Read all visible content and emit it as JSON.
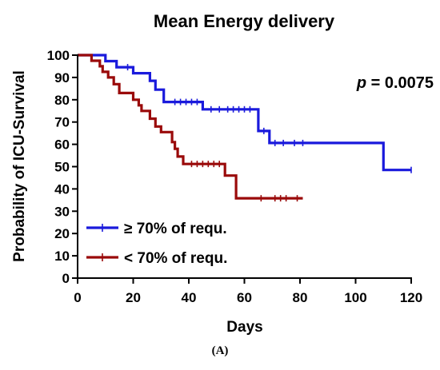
{
  "chart_data": {
    "type": "line",
    "subtype": "kaplan-meier",
    "title": "Mean Energy delivery",
    "xlabel": "Days",
    "ylabel": "Probability of ICU-Survival",
    "xlim": [
      0,
      120
    ],
    "ylim": [
      0,
      100
    ],
    "x_ticks": [
      "0",
      "20",
      "40",
      "60",
      "80",
      "100",
      "120"
    ],
    "y_ticks": [
      "0",
      "10",
      "20",
      "30",
      "40",
      "50",
      "60",
      "70",
      "80",
      "90",
      "100"
    ],
    "annotation": {
      "italic": "p",
      "text": " = 0.0075"
    },
    "panel_label": "(A)",
    "legend_position": "bottom-left",
    "series": [
      {
        "name": "≥ 70% of requ.",
        "color": "#1a1adc",
        "steps": [
          [
            0,
            100
          ],
          [
            10,
            100
          ],
          [
            10,
            97.3
          ],
          [
            14,
            97.3
          ],
          [
            14,
            94.6
          ],
          [
            20,
            94.6
          ],
          [
            20,
            91.9
          ],
          [
            26,
            91.9
          ],
          [
            26,
            88.5
          ],
          [
            28,
            88.5
          ],
          [
            28,
            84.5
          ],
          [
            31,
            84.5
          ],
          [
            31,
            79
          ],
          [
            45,
            79
          ],
          [
            45,
            75.7
          ],
          [
            65,
            75.7
          ],
          [
            65,
            66
          ],
          [
            69,
            66
          ],
          [
            69,
            60.6
          ],
          [
            110,
            60.6
          ],
          [
            110,
            48.5
          ],
          [
            120,
            48.5
          ]
        ],
        "censors": [
          [
            18,
            94.6
          ],
          [
            35,
            79
          ],
          [
            37,
            79
          ],
          [
            39,
            79
          ],
          [
            41,
            79
          ],
          [
            43,
            79
          ],
          [
            48,
            75.7
          ],
          [
            51,
            75.7
          ],
          [
            54,
            75.7
          ],
          [
            56,
            75.7
          ],
          [
            58,
            75.7
          ],
          [
            60,
            75.7
          ],
          [
            62,
            75.7
          ],
          [
            67,
            66
          ],
          [
            71,
            60.6
          ],
          [
            74,
            60.6
          ],
          [
            78,
            60.6
          ],
          [
            81,
            60.6
          ],
          [
            120,
            48.5
          ]
        ]
      },
      {
        "name": "< 70% of requ.",
        "color": "#9a0a0a",
        "steps": [
          [
            0,
            100
          ],
          [
            5,
            100
          ],
          [
            5,
            97.5
          ],
          [
            8,
            97.5
          ],
          [
            8,
            95
          ],
          [
            9,
            95
          ],
          [
            9,
            92.5
          ],
          [
            11,
            92.5
          ],
          [
            11,
            90
          ],
          [
            13,
            90
          ],
          [
            13,
            87
          ],
          [
            15,
            87
          ],
          [
            15,
            83
          ],
          [
            20,
            83
          ],
          [
            20,
            80
          ],
          [
            22,
            80
          ],
          [
            22,
            77.5
          ],
          [
            23,
            77.5
          ],
          [
            23,
            75
          ],
          [
            26,
            75
          ],
          [
            26,
            71.5
          ],
          [
            28,
            71.5
          ],
          [
            28,
            68
          ],
          [
            30,
            68
          ],
          [
            30,
            65.5
          ],
          [
            34,
            65.5
          ],
          [
            34,
            61
          ],
          [
            35,
            61
          ],
          [
            35,
            58
          ],
          [
            36,
            58
          ],
          [
            36,
            54.5
          ],
          [
            38,
            54.5
          ],
          [
            38,
            51.2
          ],
          [
            53,
            51.2
          ],
          [
            53,
            46
          ],
          [
            57,
            46
          ],
          [
            57,
            35.8
          ],
          [
            81,
            35.8
          ]
        ],
        "censors": [
          [
            41,
            51.2
          ],
          [
            43,
            51.2
          ],
          [
            45,
            51.2
          ],
          [
            47,
            51.2
          ],
          [
            49,
            51.2
          ],
          [
            51,
            51.2
          ],
          [
            66,
            35.8
          ],
          [
            71,
            35.8
          ],
          [
            73,
            35.8
          ],
          [
            75,
            35.8
          ],
          [
            79,
            35.8
          ]
        ]
      }
    ]
  }
}
